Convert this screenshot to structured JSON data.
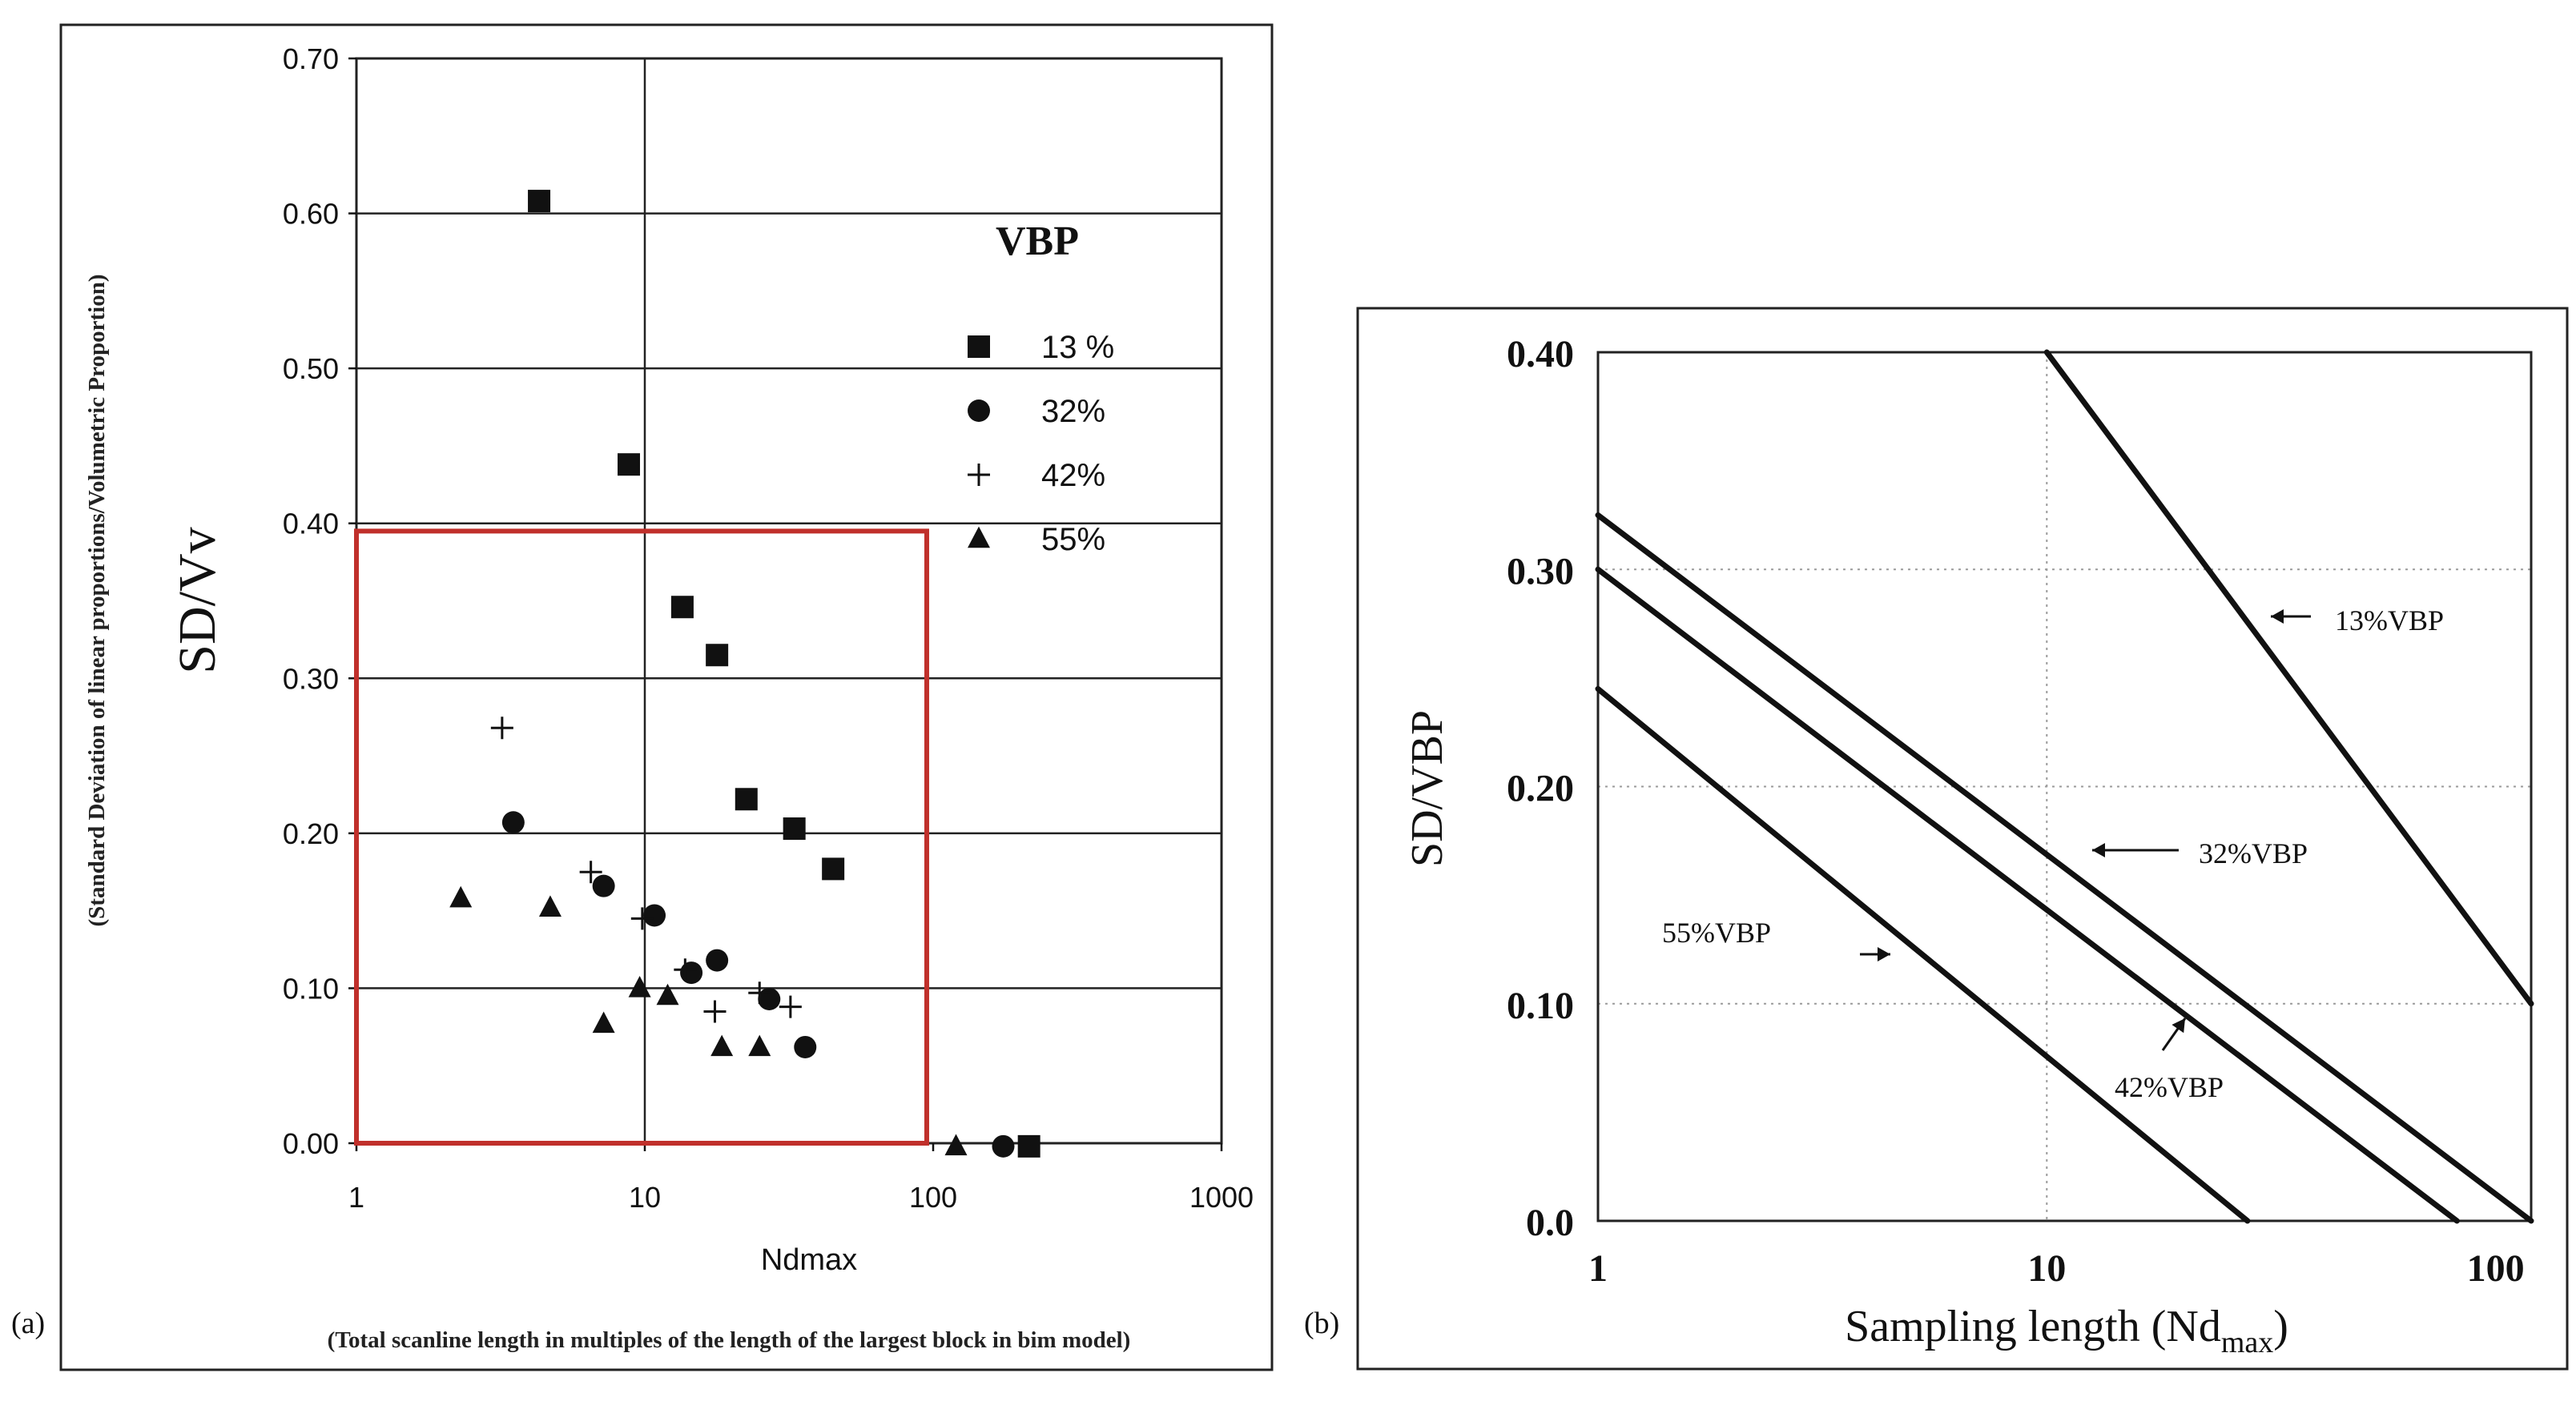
{
  "panel_a_label": "(a)",
  "panel_b_label": "(b)",
  "colors": {
    "axis": "#111111",
    "grid": "#222222",
    "highlight": "#c0302b",
    "dotted_grid": "#9a9a9a"
  },
  "chart_data": [
    {
      "id": "a",
      "type": "scatter",
      "xscale": "log",
      "xlim": [
        1,
        1000
      ],
      "ylim": [
        0,
        0.7
      ],
      "xticks": [
        "1",
        "10",
        "100",
        "1000"
      ],
      "yticks": [
        "0.00",
        "0.10",
        "0.20",
        "0.30",
        "0.40",
        "0.50",
        "0.60",
        "0.70"
      ],
      "ylabel": "SD/Vv",
      "ylabel_sub": "(Standard Deviation of linear proportions/Volumetric Proportion)",
      "xlabel": "Ndmax",
      "xlabel_sub": "(Total scanline length in multiples of the length of the largest block in bim model)",
      "legend_title": "VBP",
      "legend_position": "top-right",
      "series": [
        {
          "name": "13 %",
          "marker": "square",
          "points": [
            [
              4.3,
              0.608
            ],
            [
              8.8,
              0.438
            ],
            [
              13.5,
              0.346
            ],
            [
              17.8,
              0.315
            ],
            [
              22.5,
              0.222
            ],
            [
              33,
              0.203
            ],
            [
              45,
              0.177
            ],
            [
              215,
              -0.002
            ]
          ]
        },
        {
          "name": "32%",
          "marker": "circle",
          "points": [
            [
              3.5,
              0.207
            ],
            [
              7.2,
              0.166
            ],
            [
              10.8,
              0.147
            ],
            [
              14.5,
              0.11
            ],
            [
              17.8,
              0.118
            ],
            [
              27,
              0.093
            ],
            [
              36,
              0.062
            ],
            [
              175,
              -0.002
            ]
          ]
        },
        {
          "name": "42%",
          "marker": "plus",
          "points": [
            [
              3.2,
              0.268
            ],
            [
              6.5,
              0.175
            ],
            [
              9.8,
              0.145
            ],
            [
              13.8,
              0.112
            ],
            [
              17.5,
              0.085
            ],
            [
              25,
              0.097
            ],
            [
              32,
              0.088
            ]
          ]
        },
        {
          "name": "55%",
          "marker": "triangle",
          "points": [
            [
              2.3,
              0.158
            ],
            [
              4.7,
              0.152
            ],
            [
              7.2,
              0.077
            ],
            [
              9.6,
              0.1
            ],
            [
              12,
              0.095
            ],
            [
              18.5,
              0.062
            ],
            [
              25,
              0.062
            ],
            [
              120,
              -0.002
            ]
          ]
        }
      ],
      "highlight_box": {
        "x": [
          1,
          95
        ],
        "y": [
          0,
          0.395
        ]
      }
    },
    {
      "id": "b",
      "type": "line",
      "xscale": "log",
      "xlim": [
        1,
        120
      ],
      "ylim": [
        0,
        0.4
      ],
      "xticks": [
        "1",
        "10",
        "100"
      ],
      "yticks": [
        "0.0",
        "0.10",
        "0.20",
        "0.30",
        "0.40"
      ],
      "ylabel": "SD/VBP",
      "xlabel": "Sampling length (Nd",
      "xlabel_sub": "max",
      "xlabel_end": ")",
      "grid": "dotted",
      "series": [
        {
          "name": "13%VBP",
          "x": [
            10,
            120
          ],
          "y": [
            0.4,
            0.1
          ]
        },
        {
          "name": "32%VBP",
          "x": [
            1,
            120
          ],
          "y": [
            0.325,
            0.0
          ]
        },
        {
          "name": "42%VBP",
          "x": [
            1,
            82
          ],
          "y": [
            0.3,
            0.0
          ]
        },
        {
          "name": "55%VBP",
          "x": [
            1,
            28
          ],
          "y": [
            0.245,
            0.0
          ]
        }
      ]
    }
  ]
}
